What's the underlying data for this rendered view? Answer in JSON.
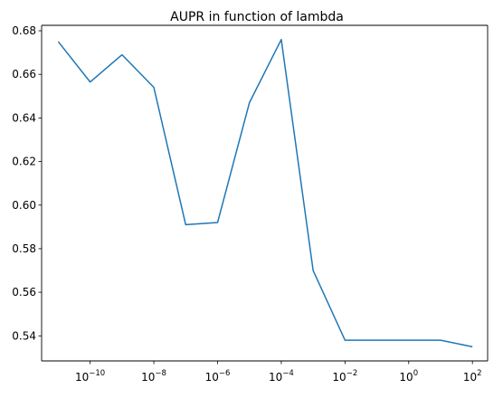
{
  "chart_data": {
    "type": "line",
    "title": "AUPR in function of lambda",
    "xlabel": "",
    "ylabel": "",
    "xscale": "log",
    "xlim": [
      3e-12,
      300.0
    ],
    "ylim": [
      0.5285,
      0.6825
    ],
    "grid": false,
    "line_color": "#1f77b4",
    "x_ticks": [
      {
        "value": 1e-10,
        "base": "10",
        "exp": "−10"
      },
      {
        "value": 1e-08,
        "base": "10",
        "exp": "−8"
      },
      {
        "value": 1e-06,
        "base": "10",
        "exp": "−6"
      },
      {
        "value": 0.0001,
        "base": "10",
        "exp": "−4"
      },
      {
        "value": 0.01,
        "base": "10",
        "exp": "−2"
      },
      {
        "value": 1,
        "base": "10",
        "exp": "0"
      },
      {
        "value": 100,
        "base": "10",
        "exp": "2"
      }
    ],
    "y_ticks": [
      {
        "value": 0.54,
        "label": "0.54"
      },
      {
        "value": 0.56,
        "label": "0.56"
      },
      {
        "value": 0.58,
        "label": "0.58"
      },
      {
        "value": 0.6,
        "label": "0.60"
      },
      {
        "value": 0.62,
        "label": "0.62"
      },
      {
        "value": 0.64,
        "label": "0.64"
      },
      {
        "value": 0.66,
        "label": "0.66"
      },
      {
        "value": 0.68,
        "label": "0.68"
      }
    ],
    "series": [
      {
        "x": [
          1e-11,
          1e-10,
          1e-09,
          1e-08,
          1e-07,
          1e-06,
          1e-05,
          0.0001,
          0.001,
          0.01,
          0.1,
          1,
          10,
          100
        ],
        "y": [
          0.675,
          0.6565,
          0.669,
          0.654,
          0.591,
          0.592,
          0.647,
          0.676,
          0.57,
          0.538,
          0.538,
          0.538,
          0.538,
          0.535
        ]
      }
    ]
  }
}
